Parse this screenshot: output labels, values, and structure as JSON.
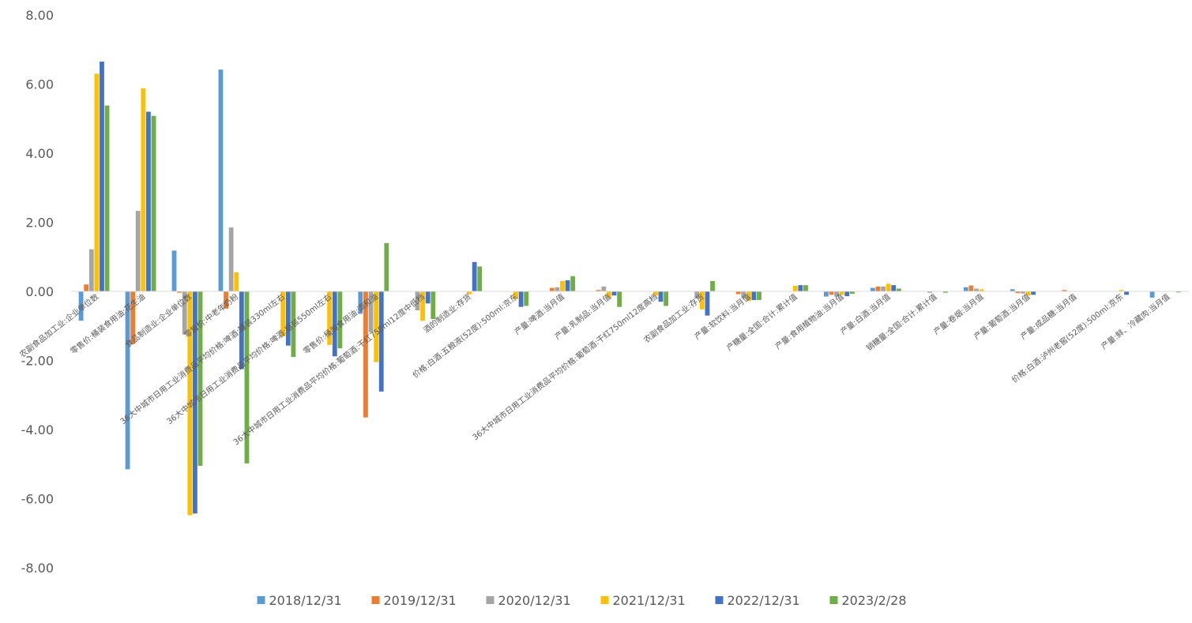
{
  "chart_data": {
    "type": "bar",
    "title": "",
    "xlabel": "",
    "ylabel": "",
    "ylim": [
      -8,
      8
    ],
    "yticks": [
      8,
      6,
      4,
      2,
      0,
      -2,
      -4,
      -6,
      -8
    ],
    "ytick_labels": [
      "8.00",
      "6.00",
      "4.00",
      "2.00",
      "0.00",
      "-2.00",
      "-4.00",
      "-6.00",
      "-8.00"
    ],
    "legend_position": "bottom",
    "categories": [
      "农副食品加工业:企业单位数",
      "零售价:桶装食用油:花生油",
      "食品制造业:企业单位数",
      "零售价:中老年奶粉",
      "36大中城市日用工业消费品平均价格:啤酒:罐装330ml左右",
      "36大中城市日用工业消费品平均价格:啤酒:瓶装550ml左右",
      "零售价:桶装食用油:调和油",
      "36大中城市日用工业消费品平均价格:葡萄酒:干红750ml12度中低档",
      "酒的制造业:存货",
      "价格:白酒:五粮液(52度):500ml:京东",
      "产量:啤酒:当月值",
      "产量:乳制品:当月值",
      "36大中城市日用工业消费品平均价格:葡萄酒:干红750ml12度高档",
      "农副食品加工业:存货",
      "产量:软饮料:当月值",
      "产糖量:全国:合计:累计值",
      "产量:食用植物油:当月值",
      "产量:白酒:当月值",
      "销糖量:全国:合计:累计值",
      "产量:卷烟:当月值",
      "产量:葡萄酒:当月值",
      "产量:成品糖:当月值",
      "价格:白酒:泸州老窖(52度):500ml:京东",
      "产量:鲜、冷藏肉:当月值"
    ],
    "series": [
      {
        "name": "2018/12/31",
        "color": "#5B9BD5",
        "values": [
          -0.85,
          -5.15,
          1.18,
          6.42,
          0,
          0,
          -0.65,
          0,
          0,
          0,
          0,
          0,
          0,
          0,
          0,
          0,
          -0.15,
          0.1,
          0,
          0.12,
          0.06,
          0,
          0,
          -0.18
        ]
      },
      {
        "name": "2019/12/31",
        "color": "#ED7D31",
        "values": [
          0.2,
          -1.52,
          -0.04,
          -0.5,
          0,
          0,
          -3.65,
          0,
          0,
          0,
          0.1,
          0.04,
          0,
          0,
          -0.08,
          0,
          -0.1,
          0.14,
          0,
          0.17,
          -0.05,
          0.04,
          0,
          0
        ]
      },
      {
        "name": "2020/12/31",
        "color": "#A5A5A5",
        "values": [
          1.22,
          2.33,
          -1.25,
          1.85,
          0,
          0,
          -1.18,
          -0.55,
          0,
          0,
          0.12,
          0.14,
          0,
          -0.2,
          -0.2,
          0,
          -0.15,
          0.14,
          -0.04,
          0.08,
          -0.06,
          0,
          0,
          0
        ]
      },
      {
        "name": "2021/12/31",
        "color": "#FFC000",
        "values": [
          6.3,
          5.88,
          -6.48,
          0.55,
          -1.3,
          -1.55,
          -2.05,
          -0.85,
          -0.08,
          -0.22,
          0.3,
          -0.18,
          -0.12,
          -0.52,
          -0.28,
          0.16,
          -0.1,
          0.22,
          0,
          0.06,
          -0.12,
          0,
          0.04,
          0
        ]
      },
      {
        "name": "2022/12/31",
        "color": "#4472C4",
        "values": [
          6.65,
          5.2,
          -6.43,
          -2.25,
          -1.57,
          -1.88,
          -2.9,
          -0.35,
          0.85,
          -0.45,
          0.32,
          -0.12,
          -0.3,
          -0.7,
          -0.25,
          0.18,
          -0.14,
          0.18,
          0,
          0,
          -0.1,
          0,
          -0.1,
          0
        ]
      },
      {
        "name": "2023/2/28",
        "color": "#70AD47",
        "values": [
          5.38,
          5.08,
          -5.05,
          -4.98,
          -1.9,
          -1.65,
          1.4,
          -0.8,
          0.72,
          -0.42,
          0.44,
          -0.45,
          -0.42,
          0.3,
          -0.25,
          0.18,
          -0.07,
          0.08,
          -0.04,
          0,
          0,
          0,
          0,
          -0.03
        ]
      }
    ]
  }
}
